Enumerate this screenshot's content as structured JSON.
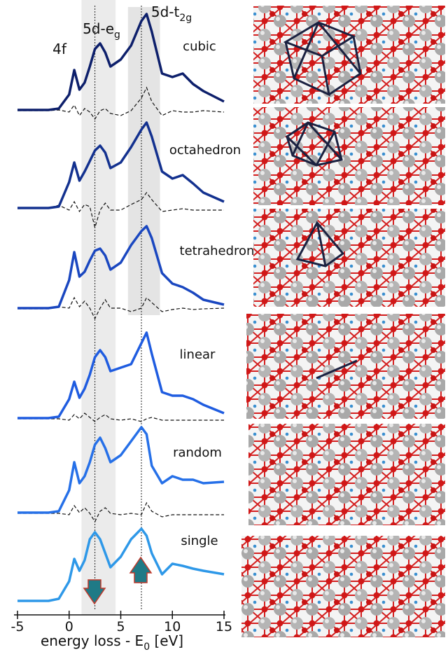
{
  "chart_data": {
    "type": "line",
    "xlabel": {
      "main": "energy loss - E",
      "sub": "0",
      "tail": " [eV]"
    },
    "peak_labels": [
      {
        "text": "4f"
      },
      {
        "text": "5d-e",
        "sub": "g"
      },
      {
        "text": "5d-t",
        "sub": "2g"
      }
    ],
    "x": [
      -5,
      -2,
      -1,
      0,
      0.5,
      1,
      1.5,
      2,
      2.5,
      3,
      3.5,
      4,
      5,
      6,
      7,
      7.5,
      8,
      9,
      10,
      11,
      12,
      13,
      15
    ],
    "xlim": [
      -5,
      15
    ],
    "xticks": [
      -5,
      0,
      5,
      10,
      15
    ],
    "ylim": [
      0,
      878
    ],
    "vlines": [
      2.5,
      7
    ],
    "bands": [
      [
        1.2,
        4.5
      ],
      [
        5.7,
        8.8
      ]
    ],
    "series": [
      {
        "name": "cubic",
        "color": "#0d1f6b",
        "values": [
          721,
          721,
          723,
          743,
          778,
          750,
          760,
          783,
          808,
          816,
          803,
          783,
          793,
          813,
          848,
          858,
          833,
          773,
          768,
          773,
          758,
          748,
          733
        ],
        "difference": [
          720,
          720,
          721,
          718,
          728,
          713,
          723,
          718,
          708,
          720,
          723,
          716,
          713,
          720,
          738,
          753,
          733,
          713,
          720,
          718,
          718,
          720,
          718
        ]
      },
      {
        "name": "octahedron",
        "color": "#13318f",
        "values": [
          581,
          581,
          583,
          618,
          646,
          620,
          633,
          648,
          663,
          670,
          660,
          638,
          646,
          668,
          693,
          703,
          683,
          633,
          623,
          628,
          616,
          603,
          590
        ],
        "difference": [
          580,
          581,
          585,
          578,
          590,
          576,
          586,
          583,
          553,
          578,
          588,
          578,
          578,
          586,
          593,
          603,
          593,
          576,
          578,
          580,
          578,
          578,
          578
        ]
      },
      {
        "name": "tetrahedron",
        "color": "#1a47c0",
        "values": [
          438,
          438,
          440,
          478,
          518,
          483,
          490,
          506,
          520,
          523,
          513,
          493,
          503,
          528,
          548,
          555,
          538,
          488,
          473,
          468,
          460,
          450,
          443
        ],
        "difference": [
          437,
          437,
          440,
          438,
          453,
          440,
          448,
          438,
          423,
          438,
          450,
          438,
          438,
          433,
          438,
          453,
          446,
          433,
          436,
          438,
          436,
          437,
          438
        ]
      },
      {
        "name": "linear",
        "color": "#1f5ce0",
        "values": [
          281,
          281,
          283,
          308,
          333,
          310,
          323,
          343,
          368,
          378,
          368,
          348,
          353,
          358,
          388,
          403,
          373,
          318,
          313,
          313,
          308,
          300,
          288
        ],
        "difference": [
          280,
          280,
          280,
          278,
          286,
          280,
          288,
          282,
          276,
          282,
          286,
          280,
          278,
          280,
          276,
          280,
          282,
          278,
          278,
          278,
          278,
          278,
          278
        ]
      },
      {
        "name": "random",
        "color": "#2670e8",
        "values": [
          146,
          146,
          148,
          178,
          218,
          188,
          198,
          218,
          243,
          253,
          238,
          218,
          228,
          248,
          268,
          258,
          213,
          188,
          198,
          193,
          193,
          188,
          190
        ],
        "difference": [
          145,
          145,
          145,
          143,
          156,
          146,
          153,
          145,
          133,
          148,
          153,
          145,
          143,
          145,
          143,
          160,
          148,
          140,
          143,
          143,
          143,
          143,
          143
        ]
      },
      {
        "name": "single",
        "color": "#2e98e8",
        "values": [
          20,
          20,
          23,
          48,
          80,
          63,
          78,
          108,
          118,
          108,
          88,
          68,
          83,
          108,
          123,
          113,
          88,
          58,
          73,
          70,
          66,
          63,
          58
        ]
      }
    ]
  }
}
